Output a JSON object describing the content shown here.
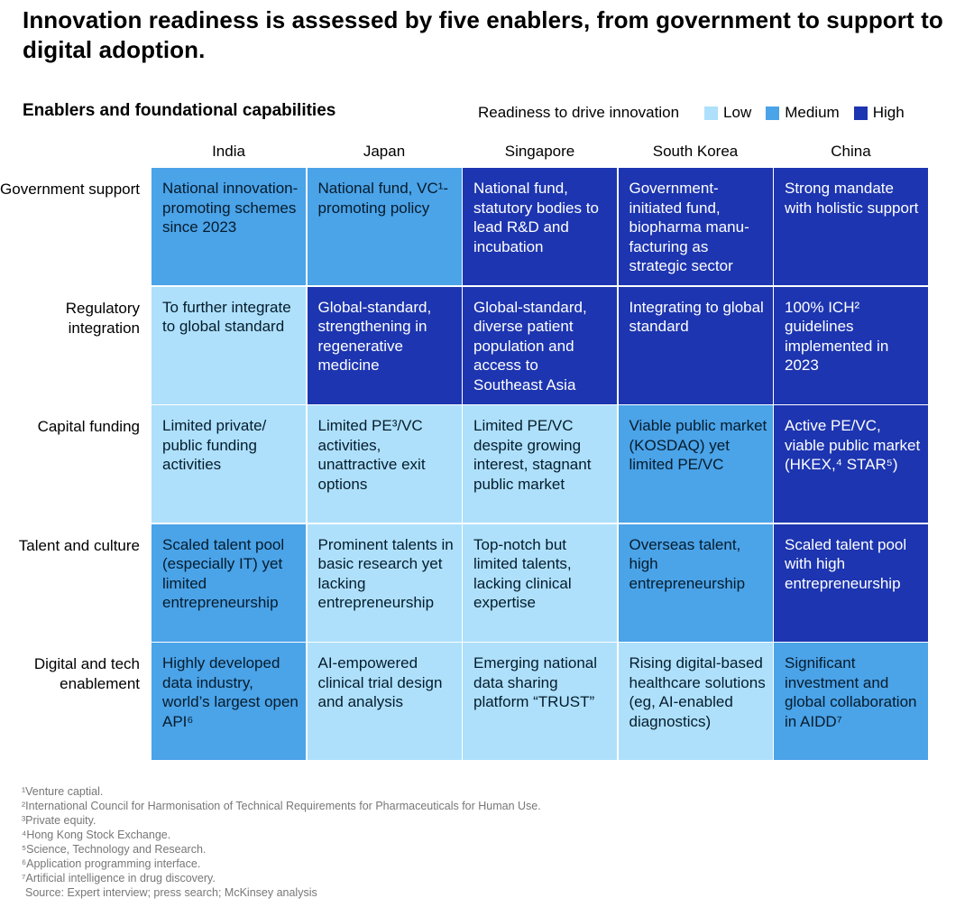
{
  "title": "Innovation readiness is assessed by five enablers, from government to support to digital adoption.",
  "subtitle": "Enablers and foundational capabilities",
  "legend": {
    "title": "Readiness to drive innovation",
    "items": [
      {
        "label": "Low",
        "color": "#aee0fb"
      },
      {
        "label": "Medium",
        "color": "#4ba3e8"
      },
      {
        "label": "High",
        "color": "#1d35b0"
      }
    ]
  },
  "chart_data": {
    "type": "table",
    "title": "Enablers and foundational capabilities",
    "columns": [
      "India",
      "Japan",
      "Singapore",
      "South Korea",
      "China"
    ],
    "rows": [
      {
        "label": "Government support",
        "cells": [
          {
            "text": "National innovation-promoting schemes since 2023",
            "level": "medium"
          },
          {
            "text": "National fund, VC¹-promoting policy",
            "level": "medium"
          },
          {
            "text": "National fund, statutory bodies to lead R&D and incubation",
            "level": "high"
          },
          {
            "text": "Government-initiated fund, biopharma manu-facturing as strategic sector",
            "level": "high"
          },
          {
            "text": "Strong mandate with holistic support",
            "level": "high"
          }
        ]
      },
      {
        "label": "Regulatory integration",
        "cells": [
          {
            "text": "To further integrate to global standard",
            "level": "low"
          },
          {
            "text": "Global-standard, strengthening in regenerative medicine",
            "level": "high"
          },
          {
            "text": "Global-standard, diverse patient population and access to Southeast Asia",
            "level": "high"
          },
          {
            "text": "Integrating to global standard",
            "level": "high"
          },
          {
            "text": "100% ICH² guidelines implemented in 2023",
            "level": "high"
          }
        ]
      },
      {
        "label": "Capital funding",
        "cells": [
          {
            "text": "Limited private/ public funding activities",
            "level": "low"
          },
          {
            "text": "Limited PE³/VC activities, unattractive exit options",
            "level": "low"
          },
          {
            "text": "Limited PE/VC despite growing interest, stagnant public market",
            "level": "low"
          },
          {
            "text": "Viable public market (KOSDAQ) yet limited PE/VC",
            "level": "medium"
          },
          {
            "text": "Active PE/VC, viable public market (HKEX,⁴ STAR⁵)",
            "level": "high"
          }
        ]
      },
      {
        "label": "Talent and culture",
        "cells": [
          {
            "text": "Scaled talent pool (especially IT) yet limited entrepreneurship",
            "level": "medium"
          },
          {
            "text": "Prominent talents in basic research yet lacking entrepreneurship",
            "level": "low"
          },
          {
            "text": "Top-notch but limited talents, lacking clinical expertise",
            "level": "low"
          },
          {
            "text": "Overseas talent, high entrepreneurship",
            "level": "medium"
          },
          {
            "text": "Scaled talent pool with high entrepreneurship",
            "level": "high"
          }
        ]
      },
      {
        "label": "Digital and tech enablement",
        "cells": [
          {
            "text": "Highly developed data industry, world’s largest open API⁶",
            "level": "medium"
          },
          {
            "text": "AI-empowered clinical trial design and analysis",
            "level": "low"
          },
          {
            "text": "Emerging national data sharing platform “TRUST”",
            "level": "low"
          },
          {
            "text": "Rising digital-based healthcare solutions (eg, AI-enabled diagnostics)",
            "level": "low"
          },
          {
            "text": "Significant investment and global collaboration in AIDD⁷",
            "level": "medium"
          }
        ]
      }
    ]
  },
  "footnotes": [
    "¹Venture captial.",
    "²International Council for Harmonisation of Technical Requirements for Pharmaceuticals for Human Use.",
    "³Private equity.",
    "⁴Hong Kong Stock Exchange.",
    "⁵Science, Technology and Research.",
    "⁶Application programming interface.",
    "⁷Artificial intelligence in drug discovery."
  ],
  "source": "Source: Expert interview; press search; McKinsey analysis"
}
